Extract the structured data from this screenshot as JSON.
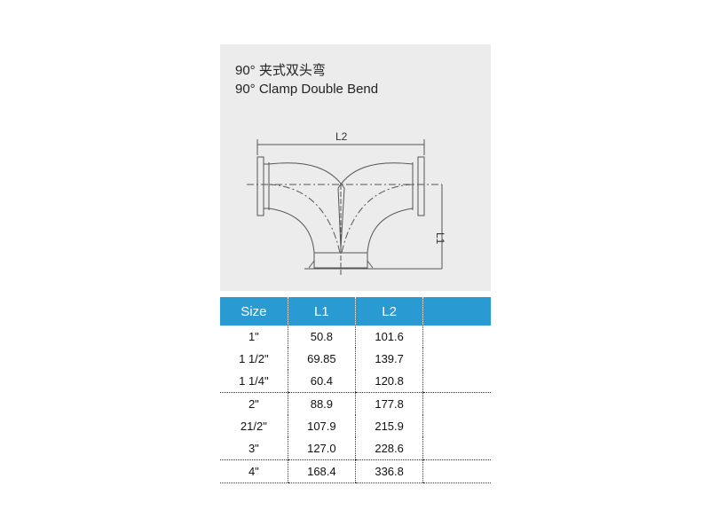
{
  "title_cn": "90°  夹式双头弯",
  "title_en": "90°   Clamp Double Bend",
  "drawing": {
    "label_l2": "L2",
    "label_l1": "L1"
  },
  "table": {
    "headers": [
      "Size",
      "L1",
      "L2",
      ""
    ],
    "rows": [
      [
        "1\"",
        "50.8",
        "101.6",
        ""
      ],
      [
        "1 1/2\"",
        "69.85",
        "139.7",
        ""
      ],
      [
        "1 1/4\"",
        "60.4",
        "120.8",
        ""
      ],
      [
        "2\"",
        "88.9",
        "177.8",
        ""
      ],
      [
        "21/2\"",
        "107.9",
        "215.9",
        ""
      ],
      [
        "3\"",
        "127.0",
        "228.6",
        ""
      ],
      [
        "4\"",
        "168.4",
        "336.8",
        ""
      ]
    ]
  },
  "colors": {
    "header": "#2a9ad3",
    "panel": "#ececec"
  }
}
